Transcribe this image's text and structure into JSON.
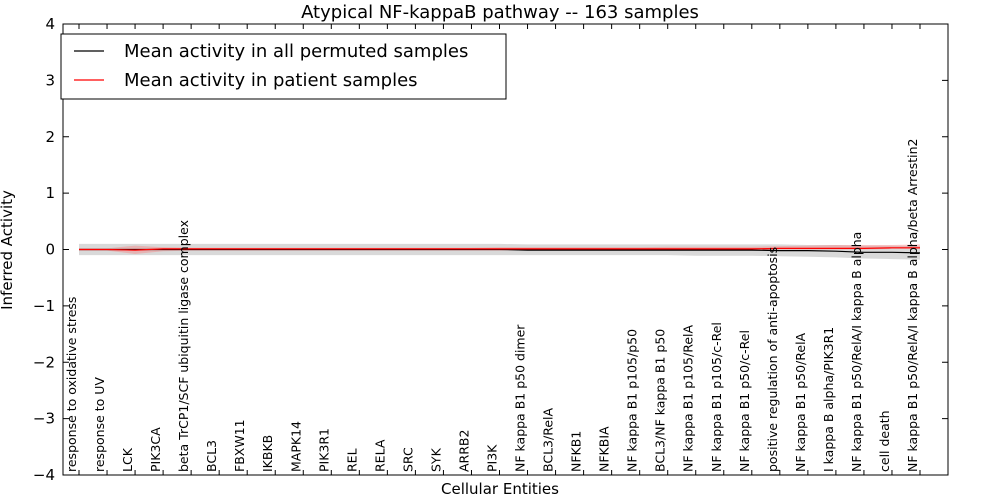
{
  "chart_data": {
    "type": "line",
    "title": "Atypical NF-kappaB pathway -- 163 samples",
    "xlabel": "Cellular Entities",
    "ylabel": "Inferred Activity",
    "ylim": [
      -4,
      4
    ],
    "yticks": [
      -4,
      -3,
      -2,
      -1,
      0,
      1,
      2,
      3,
      4
    ],
    "ytick_labels": [
      "−4",
      "−3",
      "−2",
      "−1",
      "0",
      "1",
      "2",
      "3",
      "4"
    ],
    "grid": false,
    "legend_position": "top-left",
    "categories": [
      "response to oxidative stress",
      "response to UV",
      "LCK",
      "PIK3CA",
      "beta TrCP1/SCF ubiquitin ligase complex",
      "BCL3",
      "FBXW11",
      "IKBKB",
      "MAPK14",
      "PIK3R1",
      "REL",
      "RELA",
      "SRC",
      "SYK",
      "ARRB2",
      "PI3K",
      "NF kappa B1 p50 dimer",
      "BCL3/RelA",
      "NFKB1",
      "NFKBIA",
      "NF kappa B1 p105/p50",
      "BCL3/NF kappa B1 p50",
      "NF kappa B1 p105/RelA",
      "NF kappa B1 p105/c-Rel",
      "NF kappa B1 p50/c-Rel",
      "positive regulation of anti-apoptosis",
      "NF kappa B1 p50/RelA",
      "I kappa B alpha/PIK3R1",
      "NF kappa B1 p50/RelA/I kappa B alpha",
      "cell death",
      "NF kappa B1 p50/RelA/I kappa B alpha/beta Arrestin2"
    ],
    "series": [
      {
        "name": "Mean activity in all permuted samples",
        "color": "#000000",
        "values": [
          0,
          0,
          0,
          0,
          0,
          0,
          0,
          0,
          0,
          0,
          0,
          0,
          0,
          0,
          0,
          0,
          -0.01,
          -0.01,
          -0.01,
          -0.01,
          -0.01,
          -0.01,
          -0.01,
          -0.01,
          -0.01,
          -0.02,
          -0.02,
          -0.03,
          -0.05,
          -0.05,
          -0.06
        ],
        "band_lower": [
          -0.1,
          -0.1,
          -0.1,
          -0.1,
          -0.1,
          -0.1,
          -0.1,
          -0.1,
          -0.1,
          -0.1,
          -0.1,
          -0.1,
          -0.1,
          -0.1,
          -0.1,
          -0.1,
          -0.1,
          -0.1,
          -0.1,
          -0.1,
          -0.1,
          -0.1,
          -0.11,
          -0.11,
          -0.11,
          -0.12,
          -0.13,
          -0.14,
          -0.16,
          -0.17,
          -0.18
        ],
        "band_upper": [
          0.1,
          0.1,
          0.1,
          0.1,
          0.1,
          0.1,
          0.1,
          0.1,
          0.1,
          0.1,
          0.1,
          0.1,
          0.1,
          0.1,
          0.1,
          0.1,
          0.09,
          0.09,
          0.09,
          0.09,
          0.09,
          0.09,
          0.09,
          0.09,
          0.09,
          0.09,
          0.08,
          0.08,
          0.07,
          0.07,
          0.06
        ]
      },
      {
        "name": "Mean activity in patient samples",
        "color": "#ff0000",
        "values": [
          0,
          0,
          -0.01,
          0.01,
          0.01,
          0.01,
          0.01,
          0.01,
          0.01,
          0.01,
          0.01,
          0.01,
          0.01,
          0.01,
          0.01,
          0.01,
          0.01,
          0.01,
          0.01,
          0.01,
          0.01,
          0.01,
          0.01,
          0.01,
          0.01,
          0.02,
          0.02,
          0.02,
          0.02,
          0.03,
          0.03
        ],
        "band_lower": [
          -0.02,
          -0.02,
          -0.08,
          -0.03,
          -0.02,
          -0.02,
          -0.02,
          -0.02,
          -0.02,
          -0.02,
          -0.02,
          -0.02,
          -0.02,
          -0.02,
          -0.02,
          -0.02,
          -0.01,
          -0.01,
          -0.01,
          -0.01,
          -0.01,
          -0.01,
          -0.01,
          -0.01,
          -0.01,
          0.0,
          0.0,
          0.0,
          0.0,
          0.01,
          0.01
        ],
        "band_upper": [
          0.02,
          0.02,
          0.07,
          0.04,
          0.03,
          0.03,
          0.03,
          0.03,
          0.03,
          0.03,
          0.03,
          0.03,
          0.03,
          0.03,
          0.03,
          0.04,
          0.04,
          0.04,
          0.04,
          0.04,
          0.04,
          0.05,
          0.05,
          0.05,
          0.05,
          0.06,
          0.07,
          0.08,
          0.08,
          0.08,
          0.09
        ]
      }
    ]
  }
}
